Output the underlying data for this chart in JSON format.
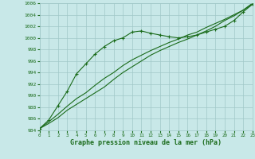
{
  "xlabel": "Graphe pression niveau de la mer (hPa)",
  "ylim": [
    984,
    1006
  ],
  "xlim": [
    0,
    23
  ],
  "yticks": [
    984,
    986,
    988,
    990,
    992,
    994,
    996,
    998,
    1000,
    1002,
    1004,
    1006
  ],
  "xticks": [
    0,
    1,
    2,
    3,
    4,
    5,
    6,
    7,
    8,
    9,
    10,
    11,
    12,
    13,
    14,
    15,
    16,
    17,
    18,
    19,
    20,
    21,
    22,
    23
  ],
  "bg_color": "#c8e8e8",
  "grid_color": "#a0c8c8",
  "line_color": "#1a6b1a",
  "line_marked_y": [
    984.3,
    985.8,
    988.3,
    990.8,
    993.8,
    995.5,
    997.2,
    998.5,
    999.5,
    1000.0,
    1001.0,
    1001.2,
    1000.8,
    1000.5,
    1000.2,
    1000.0,
    1000.2,
    1000.5,
    1001.0,
    1001.5,
    1002.0,
    1003.0,
    1004.5,
    1005.8
  ],
  "line_low_y": [
    984.3,
    985.2,
    986.2,
    987.5,
    988.5,
    989.5,
    990.5,
    991.5,
    992.8,
    994.0,
    995.0,
    996.0,
    997.0,
    997.8,
    998.5,
    999.2,
    999.8,
    1000.5,
    1001.2,
    1002.0,
    1003.0,
    1003.8,
    1004.8,
    1006.0
  ],
  "line_mid_y": [
    984.3,
    985.5,
    986.8,
    988.2,
    989.5,
    990.5,
    991.8,
    993.0,
    994.0,
    995.2,
    996.2,
    997.0,
    997.8,
    998.5,
    999.2,
    999.8,
    1000.5,
    1001.0,
    1001.8,
    1002.5,
    1003.2,
    1004.0,
    1004.8,
    1005.8
  ]
}
